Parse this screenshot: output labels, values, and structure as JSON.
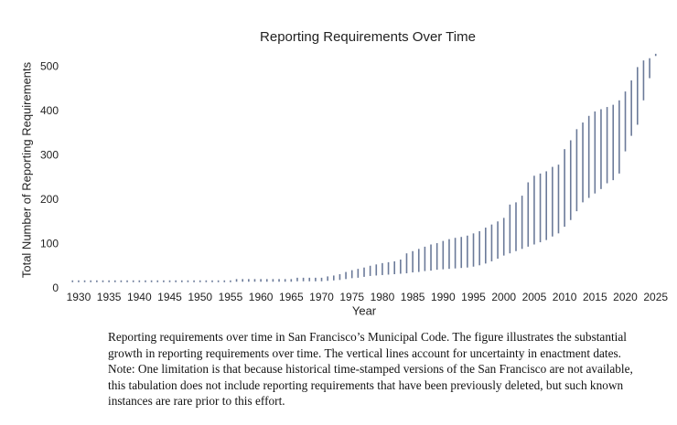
{
  "chart_data": {
    "type": "range",
    "title": "Reporting Requirements Over Time",
    "xlabel": "Year",
    "ylabel": "Total Number of Reporting Requirements",
    "color": "#6b7a99",
    "x": [
      1929,
      1930,
      1931,
      1932,
      1933,
      1934,
      1935,
      1936,
      1937,
      1938,
      1939,
      1940,
      1941,
      1942,
      1943,
      1944,
      1945,
      1946,
      1947,
      1948,
      1949,
      1950,
      1951,
      1952,
      1953,
      1954,
      1955,
      1956,
      1957,
      1958,
      1959,
      1960,
      1961,
      1962,
      1963,
      1964,
      1965,
      1966,
      1967,
      1968,
      1969,
      1970,
      1971,
      1972,
      1973,
      1974,
      1975,
      1976,
      1977,
      1978,
      1979,
      1980,
      1981,
      1982,
      1983,
      1984,
      1985,
      1986,
      1987,
      1988,
      1989,
      1990,
      1991,
      1992,
      1993,
      1994,
      1995,
      1996,
      1997,
      1998,
      1999,
      2000,
      2001,
      2002,
      2003,
      2004,
      2005,
      2006,
      2007,
      2008,
      2009,
      2010,
      2011,
      2012,
      2013,
      2014,
      2015,
      2016,
      2017,
      2018,
      2019,
      2020,
      2021,
      2022,
      2023,
      2024,
      2025
    ],
    "low": [
      15,
      15,
      15,
      15,
      15,
      15,
      15,
      15,
      15,
      15,
      15,
      15,
      15,
      15,
      15,
      15,
      15,
      15,
      15,
      15,
      15,
      15,
      15,
      15,
      15,
      15,
      15,
      16,
      16,
      16,
      16,
      16,
      16,
      16,
      16,
      16,
      16,
      17,
      17,
      17,
      17,
      17,
      18,
      19,
      20,
      22,
      24,
      25,
      27,
      29,
      30,
      31,
      32,
      33,
      34,
      35,
      37,
      38,
      40,
      41,
      43,
      44,
      45,
      46,
      47,
      48,
      50,
      53,
      57,
      62,
      68,
      75,
      80,
      85,
      90,
      95,
      100,
      105,
      110,
      118,
      125,
      140,
      155,
      175,
      195,
      205,
      215,
      225,
      238,
      245,
      260,
      310,
      345,
      370,
      425,
      475,
      525
    ],
    "high": [
      19,
      19,
      19,
      19,
      19,
      19,
      19,
      19,
      19,
      19,
      19,
      19,
      19,
      19,
      19,
      19,
      19,
      19,
      19,
      19,
      19,
      19,
      19,
      19,
      19,
      19,
      19,
      22,
      22,
      22,
      22,
      22,
      22,
      22,
      22,
      22,
      22,
      25,
      25,
      25,
      25,
      25,
      28,
      30,
      33,
      38,
      42,
      45,
      48,
      52,
      55,
      58,
      60,
      62,
      66,
      80,
      85,
      90,
      95,
      100,
      103,
      108,
      112,
      115,
      117,
      120,
      125,
      130,
      138,
      145,
      152,
      160,
      190,
      195,
      210,
      240,
      255,
      260,
      265,
      275,
      280,
      315,
      335,
      360,
      375,
      390,
      400,
      405,
      410,
      415,
      425,
      445,
      470,
      500,
      515,
      520,
      530
    ],
    "xlim": [
      1927,
      2027
    ],
    "xticks": [
      1930,
      1935,
      1940,
      1945,
      1950,
      1955,
      1960,
      1965,
      1970,
      1975,
      1980,
      1985,
      1990,
      1995,
      2000,
      2005,
      2010,
      2015,
      2020,
      2025
    ],
    "ylim": [
      0,
      540
    ],
    "yticks": [
      0,
      100,
      200,
      300,
      400,
      500
    ]
  },
  "caption": "Reporting requirements over time in San Francisco’s Municipal Code. The figure illustrates the substantial growth in reporting requirements over time. The vertical lines account for uncertainty in enactment dates. Note: One limitation is that because historical time-stamped versions of the San Francisco are not available, this tabulation does not include reporting requirements that have been previously deleted, but such known instances are rare prior to this effort."
}
